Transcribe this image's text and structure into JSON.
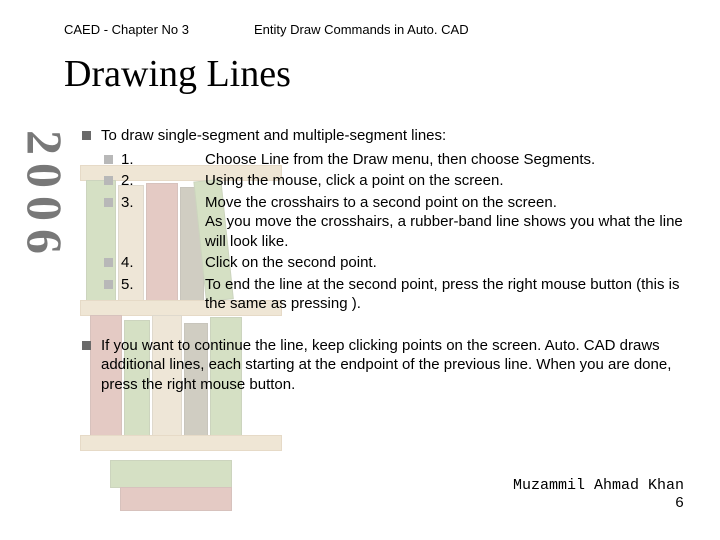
{
  "header": {
    "chapter": "CAED - Chapter No 3",
    "topic": "Entity Draw Commands in Auto. CAD"
  },
  "title": "Drawing Lines",
  "side_year": "2006",
  "intro": "To draw single-segment and multiple-segment lines:",
  "steps": [
    {
      "num": "1.",
      "text": "Choose Line from the Draw menu, then choose Segments."
    },
    {
      "num": "2.",
      "text": "Using the mouse, click a point on the screen."
    },
    {
      "num": "3.",
      "text": "Move the crosshairs to a second point on the screen.\nAs you move the crosshairs, a rubber-band line shows you what the line will look like."
    },
    {
      "num": "4.",
      "text": "Click on the second point."
    },
    {
      "num": "5.",
      "text": "To end the line at the second point, press the right mouse button (this is the same as pressing )."
    }
  ],
  "continue_text": "If you want to continue the line, keep clicking points on the screen. Auto. CAD draws additional lines, each starting at the endpoint of the previous line. When you are done, press the right mouse button.",
  "footer": {
    "author": "Muzammil Ahmad Khan",
    "page": "6"
  },
  "palette": {
    "shelf": "#d4b88a",
    "book_green": "#8aa85a",
    "book_red": "#b36a58",
    "book_tan": "#d0b890",
    "book_dark": "#7c7254"
  }
}
